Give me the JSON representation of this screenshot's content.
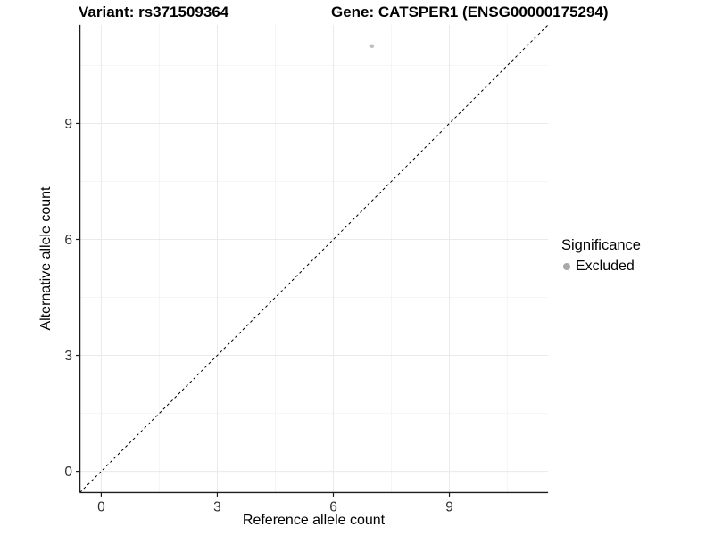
{
  "chart_data": {
    "type": "scatter",
    "title_left": "Variant: rs371509364",
    "title_right": "Gene: CATSPER1 (ENSG00000175294)",
    "xlabel": "Reference allele count",
    "ylabel": "Alternative allele count",
    "xlim": [
      -0.55,
      11.55
    ],
    "ylim": [
      -0.55,
      11.55
    ],
    "x_data_range": [
      0,
      11
    ],
    "y_data_range": [
      0,
      11
    ],
    "xticks": [
      0,
      3,
      6,
      9
    ],
    "yticks": [
      0,
      3,
      6,
      9
    ],
    "xticks_minor": [
      1.5,
      4.5,
      7.5,
      10.5
    ],
    "yticks_minor": [
      1.5,
      4.5,
      7.5,
      10.5
    ],
    "grid": "major+minor",
    "series": [
      {
        "name": "Excluded",
        "color": "#bebebe",
        "points": [
          {
            "x": 7,
            "y": 11
          }
        ]
      }
    ],
    "reference_line": {
      "type": "identity y=x",
      "style": "dashed",
      "color": "#000000",
      "from": [
        -0.55,
        -0.55
      ],
      "to": [
        11.55,
        11.55
      ]
    },
    "legend": {
      "title": "Significance",
      "position": "right",
      "entries": [
        {
          "label": "Excluded",
          "color": "#a9a9a9"
        }
      ]
    },
    "colors": {
      "background": "#ffffff",
      "grid_major": "#eaeaea",
      "grid_minor": "#f5f5f5",
      "axis_line": "#1c1c1c",
      "tick_label": "#303030"
    }
  }
}
